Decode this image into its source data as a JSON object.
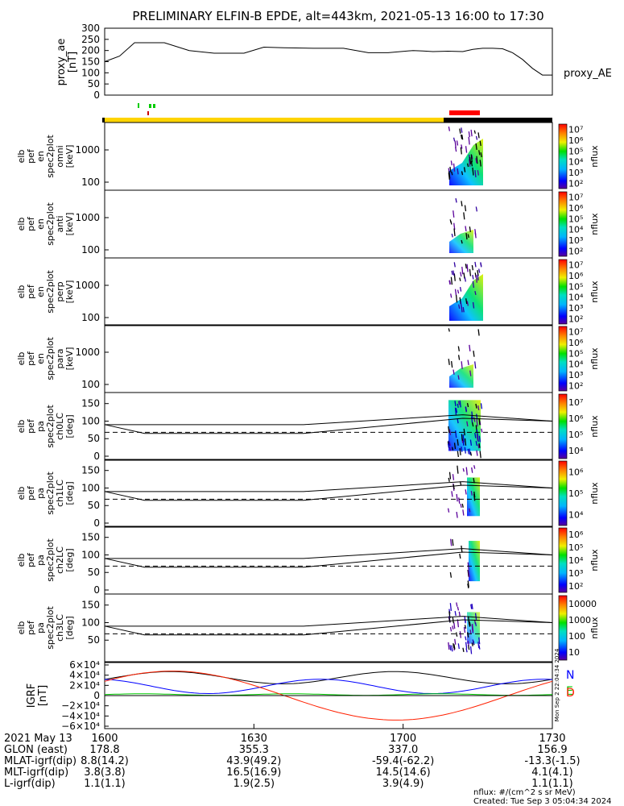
{
  "title": "PRELIMINARY ELFIN-B EPDE, alt=443km, 2021-05-13 16:00 to 17:30",
  "chart_data": {
    "type": "line",
    "proxy_ae": {
      "ylabel": [
        "proxy_ae",
        "[nT]"
      ],
      "series_label": "proxy_AE",
      "ylim": [
        0,
        300
      ],
      "yticks": [
        "0",
        "50",
        "100",
        "150",
        "200",
        "250",
        "300"
      ],
      "x_minutes": [
        0,
        3,
        6,
        9,
        12,
        17,
        22,
        28,
        32,
        36,
        42,
        48,
        53,
        57,
        62,
        64,
        66,
        69,
        72,
        74,
        76,
        78,
        80,
        82,
        84,
        86,
        88,
        90
      ],
      "values": [
        150,
        175,
        235,
        235,
        235,
        200,
        188,
        188,
        215,
        212,
        210,
        210,
        190,
        190,
        200,
        198,
        195,
        197,
        195,
        205,
        210,
        210,
        208,
        190,
        160,
        120,
        90,
        90
      ]
    },
    "spectrogram_panels": [
      {
        "ylabel": [
          "elb",
          "pef",
          "en",
          "spec2plot",
          "omni",
          "[keV]"
        ],
        "yticks": [
          "100",
          "1000"
        ],
        "zlabel": "nflux",
        "zticks": [
          "10²",
          "10³",
          "10⁴",
          "10⁵",
          "10⁶",
          "10⁷"
        ]
      },
      {
        "ylabel": [
          "elb",
          "pef",
          "en",
          "spec2plot",
          "anti",
          "[keV]"
        ],
        "yticks": [
          "100",
          "1000"
        ],
        "zlabel": "nflux",
        "zticks": [
          "10²",
          "10³",
          "10⁴",
          "10⁵",
          "10⁶",
          "10⁷"
        ]
      },
      {
        "ylabel": [
          "elb",
          "pef",
          "en",
          "spec2plot",
          "perp",
          "[keV]"
        ],
        "yticks": [
          "100",
          "1000"
        ],
        "zlabel": "nflux",
        "zticks": [
          "10²",
          "10³",
          "10⁴",
          "10⁵",
          "10⁶",
          "10⁷"
        ]
      },
      {
        "ylabel": [
          "elb",
          "pef",
          "en",
          "spec2plot",
          "para",
          "[keV]"
        ],
        "yticks": [
          "100",
          "1000"
        ],
        "zlabel": "nflux",
        "zticks": [
          "10²",
          "10³",
          "10⁴",
          "10⁵",
          "10⁶",
          "10⁷"
        ]
      }
    ],
    "pitch_panels": [
      {
        "ylabel": [
          "elb",
          "pef",
          "pa",
          "spec2plot",
          "ch0LC",
          "[deg]"
        ],
        "yticks": [
          "0",
          "50",
          "100",
          "150"
        ],
        "zlabel": "nflux",
        "zticks": [
          "10⁴",
          "10⁵",
          "10⁶",
          "10⁷"
        ]
      },
      {
        "ylabel": [
          "elb",
          "pef",
          "pa",
          "spec2plot",
          "ch1LC",
          "[deg]"
        ],
        "yticks": [
          "0",
          "50",
          "100",
          "150"
        ],
        "zlabel": "nflux",
        "zticks": [
          "10⁴",
          "10⁵",
          "10⁶"
        ]
      },
      {
        "ylabel": [
          "elb",
          "pef",
          "pa",
          "spec2plot",
          "ch2LC",
          "[deg]"
        ],
        "yticks": [
          "0",
          "50",
          "100",
          "150"
        ],
        "zlabel": "nflux",
        "zticks": [
          "10²",
          "10³",
          "10⁴",
          "10⁵",
          "10⁶"
        ]
      },
      {
        "ylabel": [
          "elb",
          "pef",
          "pa",
          "spec2plot",
          "ch3LC",
          "[deg]"
        ],
        "yticks": [
          "50",
          "100",
          "150"
        ],
        "zlabel": "nflux",
        "zticks": [
          "10",
          "100",
          "1000",
          "10000"
        ]
      }
    ],
    "pitch_angle_lines": {
      "x_minutes": [
        0,
        8,
        40,
        72,
        90
      ],
      "upper": [
        90,
        90,
        90,
        118,
        100
      ],
      "lower": [
        90,
        65,
        65,
        108,
        100
      ],
      "dashed": 68
    },
    "igrf": {
      "ylabel": [
        "IGRF",
        "[nT]"
      ],
      "ylim": [
        -60000,
        60000
      ],
      "yticks": [
        "6×10⁴",
        "4×10⁴",
        "2×10⁴",
        "0",
        "−2×10⁴",
        "−4×10⁴",
        "−6×10⁴"
      ],
      "legend": [
        "N",
        "E",
        "D"
      ],
      "colors": [
        "#0000ff",
        "#00cc00",
        "#ff2000"
      ],
      "side_text": "Mon Sep 2 22:04:34 2024"
    },
    "x_axis": {
      "ticks": [
        0,
        30,
        60,
        90
      ],
      "rows": [
        {
          "label": "2021 May 13",
          "values": [
            "1600",
            "1630",
            "1700",
            "1730"
          ]
        },
        {
          "label": "GLON (east)",
          "values": [
            "178.8",
            "355.3",
            "337.0",
            "156.9"
          ]
        },
        {
          "label": "MLAT-igrf(dip)",
          "values": [
            "8.8(14.2)",
            "43.9(49.2)",
            "-59.4(-62.2)",
            "-13.3(-1.5)"
          ]
        },
        {
          "label": "MLT-igrf(dip)",
          "values": [
            "3.8(3.8)",
            "16.5(16.9)",
            "14.5(14.6)",
            "4.1(4.1)"
          ]
        },
        {
          "label": "L-igrf(dip)",
          "values": [
            "1.1(1.1)",
            "1.9(2.5)",
            "3.9(4.9)",
            "1.1(1.1)"
          ]
        }
      ]
    }
  },
  "footer": {
    "nflux_units": "nflux: #/(cm^2 s sr MeV)",
    "created": "Created: Tue Sep  3 05:04:34 2024"
  }
}
